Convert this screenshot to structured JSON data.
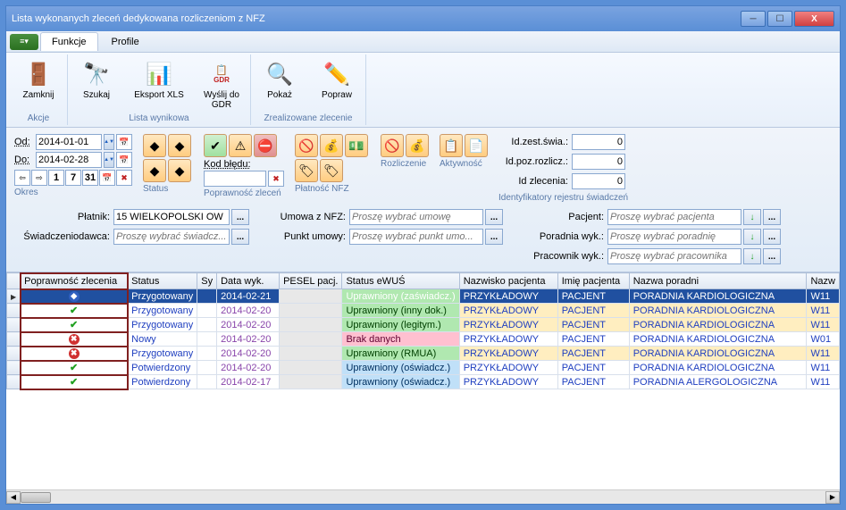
{
  "window": {
    "title": "Lista wykonanych zleceń dedykowana rozliczeniom z NFZ"
  },
  "tabs": {
    "funkcje": "Funkcje",
    "profile": "Profile"
  },
  "ribbon": {
    "zamknij": "Zamknij",
    "szukaj": "Szukaj",
    "eksport": "Eksport XLS",
    "wyslij": "Wyślij do GDR",
    "pokaz": "Pokaż",
    "popraw": "Popraw",
    "grp_akcje": "Akcje",
    "grp_lista": "Lista wynikowa",
    "grp_zreal": "Zrealizowane zlecenie"
  },
  "filters": {
    "od_lbl": "Od:",
    "od_val": "2014-01-01",
    "do_lbl": "Do:",
    "do_val": "2014-02-28",
    "okres_lbl": "Okres",
    "status_lbl": "Status",
    "kod_bledu_lbl": "Kod błędu:",
    "popraw_lbl": "Poprawność zleceń",
    "platnosc_lbl": "Płatność NFZ",
    "rozlicz_lbl": "Rozliczenie",
    "aktyw_lbl": "Aktywność",
    "ident_lbl": "Identyfikatory rejestru świadczeń",
    "id_zest_lbl": "Id.zest.świa.:",
    "id_zest_val": "0",
    "id_poz_lbl": "Id.poz.rozlicz.:",
    "id_poz_val": "0",
    "id_zlec_lbl": "Id zlecenia:",
    "id_zlec_val": "0"
  },
  "form": {
    "platnik_lbl": "Płatnik:",
    "platnik_val": "15 WIELKOPOLSKI OW",
    "swiadcz_lbl": "Świadczeniodawca:",
    "swiadcz_ph": "Proszę wybrać świadcz...",
    "umowa_lbl": "Umowa z NFZ:",
    "umowa_ph": "Proszę wybrać umowę",
    "punkt_lbl": "Punkt umowy:",
    "punkt_ph": "Proszę wybrać punkt umo...",
    "pacjent_lbl": "Pacjent:",
    "pacjent_ph": "Proszę wybrać pacjenta",
    "poradnia_lbl": "Poradnia wyk.:",
    "poradnia_ph": "Proszę wybrać poradnię",
    "pracownik_lbl": "Pracownik wyk.:",
    "pracownik_ph": "Proszę wybrać pracownika"
  },
  "grid": {
    "cols": {
      "popraw": "Poprawność zlecenia",
      "status": "Status",
      "sy": "Sy",
      "data": "Data wyk.",
      "pesel": "PESEL pacj.",
      "ewus": "Status eWUŚ",
      "nazwisko": "Nazwisko pacjenta",
      "imie": "Imię pacjenta",
      "poradnia": "Nazwa poradni",
      "nazw": "Nazw"
    },
    "rows": [
      {
        "icon": "info",
        "status": "Przygotowany",
        "data": "2014-02-21",
        "ewus": "Uprawniony (zaświadcz.)",
        "ewus_cls": "status-green",
        "nazwisko": "PRZYKŁADOWY",
        "imie": "PACJENT",
        "poradnia": "PORADNIA KARDIOLOGICZNA",
        "kod": "W11",
        "sel": true,
        "row_cls": ""
      },
      {
        "icon": "ok",
        "status": "Przygotowany",
        "data": "2014-02-20",
        "ewus": "Uprawniony (inny dok.)",
        "ewus_cls": "status-green",
        "nazwisko": "PRZYKŁADOWY",
        "imie": "PACJENT",
        "poradnia": "PORADNIA KARDIOLOGICZNA",
        "kod": "W11",
        "sel": false,
        "row_cls": "yellow-bg"
      },
      {
        "icon": "ok",
        "status": "Przygotowany",
        "data": "2014-02-20",
        "ewus": "Uprawniony (legitym.)",
        "ewus_cls": "status-green",
        "nazwisko": "PRZYKŁADOWY",
        "imie": "PACJENT",
        "poradnia": "PORADNIA KARDIOLOGICZNA",
        "kod": "W11",
        "sel": false,
        "row_cls": "yellow-bg"
      },
      {
        "icon": "err",
        "status": "Nowy",
        "data": "2014-02-20",
        "ewus": "Brak danych",
        "ewus_cls": "status-pink",
        "nazwisko": "PRZYKŁADOWY",
        "imie": "PACJENT",
        "poradnia": "PORADNIA KARDIOLOGICZNA",
        "kod": "W01",
        "sel": false,
        "row_cls": ""
      },
      {
        "icon": "err",
        "status": "Przygotowany",
        "data": "2014-02-20",
        "ewus": "Uprawniony (RMUA)",
        "ewus_cls": "status-green",
        "nazwisko": "PRZYKŁADOWY",
        "imie": "PACJENT",
        "poradnia": "PORADNIA KARDIOLOGICZNA",
        "kod": "W11",
        "sel": false,
        "row_cls": "yellow-bg"
      },
      {
        "icon": "ok",
        "status": "Potwierdzony",
        "data": "2014-02-20",
        "ewus": "Uprawniony (oświadcz.)",
        "ewus_cls": "status-blue",
        "nazwisko": "PRZYKŁADOWY",
        "imie": "PACJENT",
        "poradnia": "PORADNIA KARDIOLOGICZNA",
        "kod": "W11",
        "sel": false,
        "row_cls": ""
      },
      {
        "icon": "ok",
        "status": "Potwierdzony",
        "data": "2014-02-17",
        "ewus": "Uprawniony (oświadcz.)",
        "ewus_cls": "status-blue",
        "nazwisko": "PRZYKŁADOWY",
        "imie": "PACJENT",
        "poradnia": "PORADNIA ALERGOLOGICZNA",
        "kod": "W11",
        "sel": false,
        "row_cls": ""
      }
    ]
  }
}
